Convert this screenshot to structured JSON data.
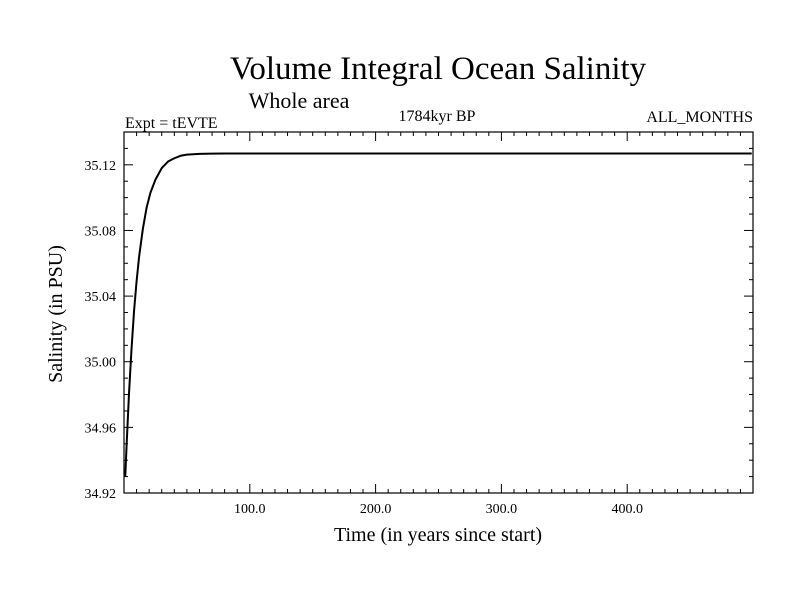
{
  "chart_data": {
    "type": "line",
    "title": "Volume Integral Ocean Salinity",
    "subtitle": "Whole area",
    "header_left": "Expt = tEVTE",
    "header_center": "1784kyr BP",
    "header_right": "ALL_MONTHS",
    "xlabel": "Time (in years since start)",
    "ylabel": "Salinity (in PSU)",
    "xlim": [
      0,
      500
    ],
    "ylim": [
      34.92,
      35.14
    ],
    "xticks_major": [
      100,
      200,
      300,
      400
    ],
    "xtick_labels": [
      "100.0",
      "200.0",
      "300.0",
      "400.0"
    ],
    "yticks_major": [
      34.92,
      34.96,
      35.0,
      35.04,
      35.08,
      35.12
    ],
    "ytick_labels": [
      "34.92",
      "34.96",
      "35.00",
      "35.04",
      "35.08",
      "35.12"
    ],
    "grid": false,
    "series": [
      {
        "color": "#000000",
        "x": [
          1,
          2,
          4,
          6,
          8,
          10,
          12,
          15,
          18,
          21,
          25,
          30,
          35,
          40,
          45,
          50,
          60,
          70,
          80,
          90,
          100,
          150,
          200,
          250,
          300,
          350,
          400,
          450,
          499
        ],
        "y": [
          34.93,
          34.948,
          34.981,
          35.008,
          35.031,
          35.049,
          35.064,
          35.081,
          35.094,
          35.103,
          35.111,
          35.118,
          35.122,
          35.124,
          35.1255,
          35.1262,
          35.1267,
          35.1268,
          35.1269,
          35.1269,
          35.1269,
          35.1269,
          35.1269,
          35.1269,
          35.1269,
          35.1269,
          35.1269,
          35.1269,
          35.1269
        ]
      }
    ]
  }
}
